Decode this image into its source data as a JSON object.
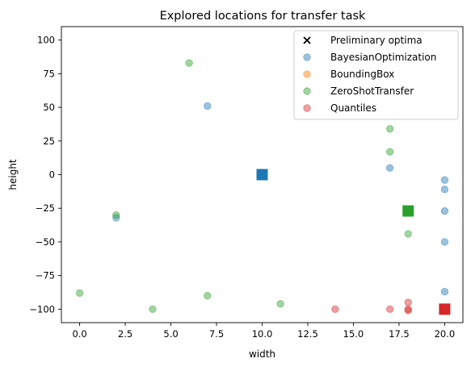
{
  "chart_data": {
    "type": "scatter",
    "title": "Explored locations for transfer task",
    "xlabel": "width",
    "ylabel": "height",
    "xlim": [
      -1,
      21
    ],
    "ylim": [
      -110,
      110
    ],
    "xticks": [
      0.0,
      2.5,
      5.0,
      7.5,
      10.0,
      12.5,
      15.0,
      17.5,
      20.0
    ],
    "xtick_labels": [
      "0.0",
      "2.5",
      "5.0",
      "7.5",
      "10.0",
      "12.5",
      "15.0",
      "17.5",
      "20.0"
    ],
    "yticks": [
      100,
      75,
      50,
      25,
      0,
      -25,
      -50,
      -75,
      -100
    ],
    "ytick_labels": [
      "100",
      "75",
      "50",
      "25",
      "0",
      "−25",
      "−50",
      "−75",
      "−100"
    ],
    "grid": false,
    "legend_position": "top-right",
    "legend": [
      {
        "label": "Preliminary optima",
        "marker": "x",
        "color": "#000000"
      },
      {
        "label": "BayesianOptimization",
        "marker": "o",
        "color": "#1f77b4"
      },
      {
        "label": "BoundingBox",
        "marker": "o",
        "color": "#ff7f0e"
      },
      {
        "label": "ZeroShotTransfer",
        "marker": "o",
        "color": "#2ca02c"
      },
      {
        "label": "Quantiles",
        "marker": "o",
        "color": "#d62728"
      }
    ],
    "series": [
      {
        "name": "BayesianOptimization",
        "color": "#1f77b4",
        "marker": "o",
        "points": [
          [
            7,
            51
          ],
          [
            2,
            -32
          ],
          [
            17,
            5
          ],
          [
            20,
            -4
          ],
          [
            20,
            -11
          ],
          [
            20,
            -27
          ],
          [
            20,
            -50
          ],
          [
            20,
            -87
          ]
        ]
      },
      {
        "name": "ZeroShotTransfer",
        "color": "#2ca02c",
        "marker": "o",
        "points": [
          [
            6,
            83
          ],
          [
            2,
            -30
          ],
          [
            17,
            34
          ],
          [
            17,
            17
          ],
          [
            18,
            -44
          ],
          [
            0,
            -88
          ],
          [
            4,
            -100
          ],
          [
            7,
            -90
          ],
          [
            11,
            -96
          ]
        ]
      },
      {
        "name": "Quantiles",
        "color": "#d62728",
        "marker": "o",
        "points": [
          [
            14,
            -100
          ],
          [
            17,
            -100
          ],
          [
            18,
            -100
          ],
          [
            18,
            -95
          ],
          [
            18,
            -101
          ]
        ]
      }
    ],
    "square_markers": [
      {
        "x": 10,
        "y": 0,
        "color": "#1f77b4"
      },
      {
        "x": 18,
        "y": -27,
        "color": "#2ca02c"
      },
      {
        "x": 20,
        "y": -100,
        "color": "#d62728"
      }
    ]
  }
}
